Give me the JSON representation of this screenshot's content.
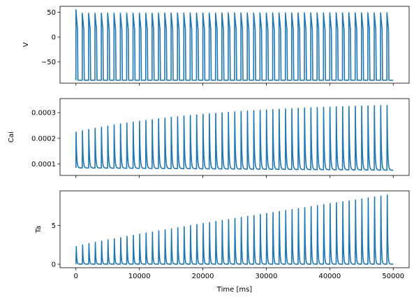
{
  "chart_data": {
    "type": "line",
    "line_color": "#1f77b4",
    "xlabel": "Time [ms]",
    "xlim": [
      -2500,
      52500
    ],
    "xticks": [
      0,
      10000,
      20000,
      30000,
      40000,
      50000
    ],
    "xtick_labels": [
      "0",
      "10000",
      "20000",
      "30000",
      "40000",
      "50000"
    ],
    "sharex": true,
    "beat_period": 1000,
    "beats": 50,
    "t_end": 50000,
    "grid": false,
    "panels": [
      {
        "ylabel": "V",
        "ylim": [
          -93,
          62
        ],
        "yticks": [
          -50,
          0,
          50
        ],
        "ytick_labels": [
          "−50",
          "0",
          "50"
        ],
        "rest": -87,
        "first_peak": 55,
        "peak_start": 48,
        "peak_end": 49,
        "first_sample": -80
      },
      {
        "ylabel": "Cai",
        "ylim": [
          5.5e-05,
          0.000355
        ],
        "yticks": [
          0.0001,
          0.0002,
          0.0003
        ],
        "ytick_labels": [
          "0.0001",
          "0.0002",
          "0.0003"
        ],
        "diastolic_start": 8.45e-05,
        "diastolic_end": 7.55e-05,
        "peak_start": 0.000232,
        "peak_end": 0.000342
      },
      {
        "ylabel": "Ta",
        "ylim": [
          -0.45,
          9.45
        ],
        "yticks": [
          0,
          5
        ],
        "ytick_labels": [
          "0",
          "5"
        ],
        "diastolic": 0.02,
        "peak_start": 2.3,
        "peak_end": 8.9
      }
    ]
  }
}
